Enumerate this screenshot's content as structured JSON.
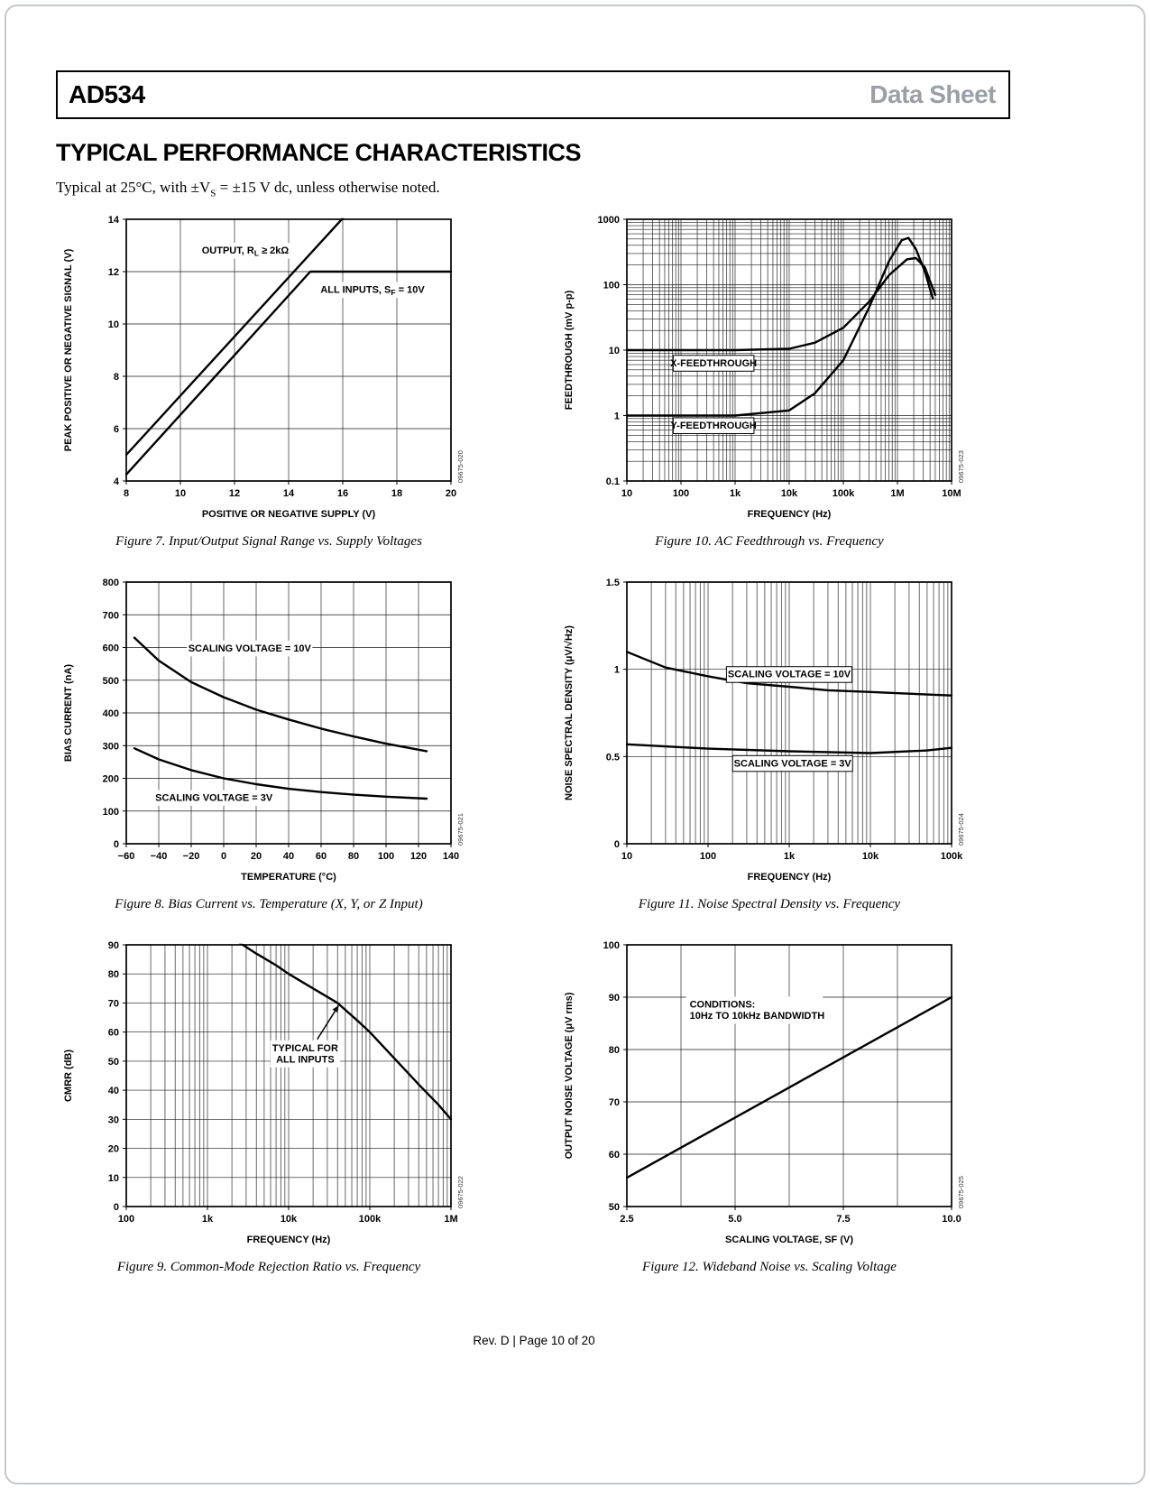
{
  "header": {
    "part_number": "AD534",
    "doc_type": "Data Sheet"
  },
  "section_title": "TYPICAL PERFORMANCE CHARACTERISTICS",
  "conditions_note": {
    "pre": "Typical at 25°C, with ±V",
    "sub": "S",
    "post": " = ±15 V dc, unless otherwise noted."
  },
  "footer": {
    "text": "Rev. D | Page 10 of 20"
  },
  "chart_data": [
    {
      "id": "fig7",
      "type": "line",
      "caption": "Figure 7. Input/Output Signal Range vs. Supply Voltages",
      "code": "09675-020",
      "xlabel": "POSITIVE OR NEGATIVE SUPPLY (V)",
      "ylabel": "PEAK POSITIVE OR NEGATIVE SIGNAL (V)",
      "xscale": "linear",
      "yscale": "linear",
      "xlim": [
        8,
        20
      ],
      "ylim": [
        4,
        14
      ],
      "xticks": [
        {
          "v": 8,
          "l": "8"
        },
        {
          "v": 10,
          "l": "10"
        },
        {
          "v": 12,
          "l": "12"
        },
        {
          "v": 14,
          "l": "14"
        },
        {
          "v": 16,
          "l": "16"
        },
        {
          "v": 18,
          "l": "18"
        },
        {
          "v": 20,
          "l": "20"
        }
      ],
      "yticks": [
        {
          "v": 4,
          "l": "4"
        },
        {
          "v": 6,
          "l": "6"
        },
        {
          "v": 8,
          "l": "8"
        },
        {
          "v": 10,
          "l": "10"
        },
        {
          "v": 12,
          "l": "12"
        },
        {
          "v": 14,
          "l": "14"
        }
      ],
      "xgrid": [
        10,
        12,
        14,
        16,
        18
      ],
      "ygrid": [
        6,
        8,
        10,
        12
      ],
      "series": [
        {
          "name": "OUTPUT, RL >= 2kOhm",
          "points": [
            [
              8,
              5
            ],
            [
              16.1,
              14.15
            ]
          ]
        },
        {
          "name": "ALL INPUTS, SF = 10V",
          "points": [
            [
              8,
              4.25
            ],
            [
              14.8,
              12
            ],
            [
              20,
              12
            ]
          ]
        }
      ],
      "annotations": [
        {
          "x": 12.4,
          "y": 12.8,
          "box": true,
          "lines": [
            [
              {
                "t": "OUTPUT, R"
              },
              {
                "t": "L",
                "sub": true
              },
              {
                "t": " ≥ 2kΩ"
              }
            ]
          ]
        },
        {
          "x": 17.1,
          "y": 11.3,
          "box": true,
          "lines": [
            [
              {
                "t": "ALL INPUTS, S"
              },
              {
                "t": "F",
                "sub": true
              },
              {
                "t": " = 10V"
              }
            ]
          ]
        }
      ]
    },
    {
      "id": "fig10",
      "type": "line",
      "caption": "Figure 10. AC Feedthrough vs. Frequency",
      "code": "09675-023",
      "xlabel": "FREQUENCY (Hz)",
      "ylabel": "FEEDTHROUGH (mV p-p)",
      "xscale": "log",
      "yscale": "log",
      "xlim": [
        10,
        10000000
      ],
      "ylim": [
        0.1,
        1000
      ],
      "xticks": [
        {
          "v": 10,
          "l": "10"
        },
        {
          "v": 100,
          "l": "100"
        },
        {
          "v": 1000,
          "l": "1k"
        },
        {
          "v": 10000,
          "l": "10k"
        },
        {
          "v": 100000,
          "l": "100k"
        },
        {
          "v": 1000000,
          "l": "1M"
        },
        {
          "v": 10000000,
          "l": "10M"
        }
      ],
      "yticks": [
        {
          "v": 0.1,
          "l": "0.1"
        },
        {
          "v": 1,
          "l": "1"
        },
        {
          "v": 10,
          "l": "10"
        },
        {
          "v": 100,
          "l": "100"
        },
        {
          "v": 1000,
          "l": "1000"
        }
      ],
      "series": [
        {
          "name": "X-FEEDTHROUGH",
          "points": [
            [
              10,
              10
            ],
            [
              100,
              10
            ],
            [
              1000,
              10
            ],
            [
              10000,
              10.5
            ],
            [
              30000,
              13
            ],
            [
              100000,
              22
            ],
            [
              300000,
              55
            ],
            [
              700000,
              140
            ],
            [
              1500000,
              245
            ],
            [
              2200000,
              255
            ],
            [
              3200000,
              185
            ],
            [
              5000000,
              70
            ]
          ]
        },
        {
          "name": "Y-FEEDTHROUGH",
          "points": [
            [
              10,
              1
            ],
            [
              100,
              1
            ],
            [
              1000,
              1
            ],
            [
              10000,
              1.2
            ],
            [
              30000,
              2.2
            ],
            [
              100000,
              7
            ],
            [
              300000,
              45
            ],
            [
              700000,
              230
            ],
            [
              1200000,
              480
            ],
            [
              1600000,
              520
            ],
            [
              2200000,
              350
            ],
            [
              3200000,
              160
            ],
            [
              4500000,
              62
            ]
          ]
        }
      ],
      "annotations": [
        {
          "x": 400,
          "y": 6.3,
          "box": true,
          "border": true,
          "lines": [
            "X-FEEDTHROUGH"
          ]
        },
        {
          "x": 400,
          "y": 0.7,
          "box": true,
          "border": true,
          "lines": [
            "Y-FEEDTHROUGH"
          ]
        }
      ]
    },
    {
      "id": "fig8",
      "type": "line",
      "caption": "Figure 8. Bias Current vs. Temperature (X, Y, or Z Input)",
      "code": "09675-021",
      "xlabel": "TEMPERATURE (°C)",
      "ylabel": "BIAS CURRENT (nA)",
      "xscale": "linear",
      "yscale": "linear",
      "xlim": [
        -60,
        140
      ],
      "ylim": [
        0,
        800
      ],
      "xticks": [
        {
          "v": -60,
          "l": "−60"
        },
        {
          "v": -40,
          "l": "−40"
        },
        {
          "v": -20,
          "l": "−20"
        },
        {
          "v": 0,
          "l": "0"
        },
        {
          "v": 20,
          "l": "20"
        },
        {
          "v": 40,
          "l": "40"
        },
        {
          "v": 60,
          "l": "60"
        },
        {
          "v": 80,
          "l": "80"
        },
        {
          "v": 100,
          "l": "100"
        },
        {
          "v": 120,
          "l": "120"
        },
        {
          "v": 140,
          "l": "140"
        }
      ],
      "yticks": [
        {
          "v": 0,
          "l": "0"
        },
        {
          "v": 100,
          "l": "100"
        },
        {
          "v": 200,
          "l": "200"
        },
        {
          "v": 300,
          "l": "300"
        },
        {
          "v": 400,
          "l": "400"
        },
        {
          "v": 500,
          "l": "500"
        },
        {
          "v": 600,
          "l": "600"
        },
        {
          "v": 700,
          "l": "700"
        },
        {
          "v": 800,
          "l": "800"
        }
      ],
      "xgrid": [
        -40,
        -20,
        0,
        20,
        40,
        60,
        80,
        100,
        120
      ],
      "ygrid": [
        100,
        200,
        300,
        400,
        500,
        600,
        700
      ],
      "series": [
        {
          "name": "SCALING VOLTAGE = 10V",
          "points": [
            [
              -55,
              630
            ],
            [
              -40,
              560
            ],
            [
              -20,
              494
            ],
            [
              0,
              448
            ],
            [
              20,
              410
            ],
            [
              40,
              380
            ],
            [
              60,
              352
            ],
            [
              80,
              328
            ],
            [
              100,
              306
            ],
            [
              125,
              283
            ]
          ]
        },
        {
          "name": "SCALING VOLTAGE = 3V",
          "points": [
            [
              -55,
              292
            ],
            [
              -40,
              258
            ],
            [
              -20,
              225
            ],
            [
              0,
              200
            ],
            [
              20,
              182
            ],
            [
              40,
              168
            ],
            [
              60,
              158
            ],
            [
              80,
              150
            ],
            [
              100,
              144
            ],
            [
              125,
              138
            ]
          ]
        }
      ],
      "annotations": [
        {
          "x": 16,
          "y": 597,
          "box": true,
          "lines": [
            "SCALING VOLTAGE = 10V"
          ]
        },
        {
          "x": -6,
          "y": 140,
          "box": true,
          "lines": [
            "SCALING VOLTAGE = 3V"
          ]
        }
      ]
    },
    {
      "id": "fig11",
      "type": "line",
      "caption": "Figure 11. Noise Spectral Density vs. Frequency",
      "code": "09675-024",
      "xlabel": "FREQUENCY (Hz)",
      "ylabel": "NOISE SPECTRAL DENSITY (μV/√Hz)",
      "xscale": "log",
      "yscale": "linear",
      "xlim": [
        10,
        100000
      ],
      "ylim": [
        0,
        1.5
      ],
      "xticks": [
        {
          "v": 10,
          "l": "10"
        },
        {
          "v": 100,
          "l": "100"
        },
        {
          "v": 1000,
          "l": "1k"
        },
        {
          "v": 10000,
          "l": "10k"
        },
        {
          "v": 100000,
          "l": "100k"
        }
      ],
      "yticks": [
        {
          "v": 0,
          "l": "0"
        },
        {
          "v": 0.5,
          "l": "0.5"
        },
        {
          "v": 1,
          "l": "1"
        },
        {
          "v": 1.5,
          "l": "1.5"
        }
      ],
      "ygrid": [
        0.5,
        1
      ],
      "series": [
        {
          "name": "SCALING VOLTAGE = 10V",
          "points": [
            [
              10,
              1.1
            ],
            [
              30,
              1.01
            ],
            [
              100,
              0.96
            ],
            [
              300,
              0.92
            ],
            [
              1000,
              0.9
            ],
            [
              3000,
              0.88
            ],
            [
              10000,
              0.87
            ],
            [
              30000,
              0.86
            ],
            [
              100000,
              0.85
            ]
          ]
        },
        {
          "name": "SCALING VOLTAGE = 3V",
          "points": [
            [
              10,
              0.57
            ],
            [
              100,
              0.545
            ],
            [
              1000,
              0.53
            ],
            [
              10000,
              0.52
            ],
            [
              50000,
              0.535
            ],
            [
              100000,
              0.55
            ]
          ]
        }
      ],
      "annotations": [
        {
          "x": 1000,
          "y": 0.97,
          "box": true,
          "border": true,
          "lines": [
            "SCALING VOLTAGE = 10V"
          ]
        },
        {
          "x": 1100,
          "y": 0.46,
          "box": true,
          "border": true,
          "lines": [
            "SCALING VOLTAGE = 3V"
          ]
        }
      ]
    },
    {
      "id": "fig9",
      "type": "line",
      "caption": "Figure 9. Common-Mode Rejection Ratio vs. Frequency",
      "code": "09675-022",
      "xlabel": "FREQUENCY (Hz)",
      "ylabel": "CMRR (dB)",
      "xscale": "log",
      "yscale": "linear",
      "xlim": [
        100,
        1000000
      ],
      "ylim": [
        0,
        90
      ],
      "xticks": [
        {
          "v": 100,
          "l": "100"
        },
        {
          "v": 1000,
          "l": "1k"
        },
        {
          "v": 10000,
          "l": "10k"
        },
        {
          "v": 100000,
          "l": "100k"
        },
        {
          "v": 1000000,
          "l": "1M"
        }
      ],
      "yticks": [
        {
          "v": 0,
          "l": "0"
        },
        {
          "v": 10,
          "l": "10"
        },
        {
          "v": 20,
          "l": "20"
        },
        {
          "v": 30,
          "l": "30"
        },
        {
          "v": 40,
          "l": "40"
        },
        {
          "v": 50,
          "l": "50"
        },
        {
          "v": 60,
          "l": "60"
        },
        {
          "v": 70,
          "l": "70"
        },
        {
          "v": 80,
          "l": "80"
        },
        {
          "v": 90,
          "l": "90"
        }
      ],
      "ygrid": [
        10,
        20,
        30,
        40,
        50,
        60,
        70,
        80
      ],
      "series": [
        {
          "name": "CMRR",
          "points": [
            [
              2400,
              91
            ],
            [
              4000,
              87
            ],
            [
              7000,
              83
            ],
            [
              10000,
              80
            ],
            [
              20000,
              75
            ],
            [
              40000,
              70
            ],
            [
              70000,
              64
            ],
            [
              100000,
              60
            ],
            [
              200000,
              51
            ],
            [
              400000,
              42
            ],
            [
              700000,
              35
            ],
            [
              1000000,
              30
            ]
          ]
        }
      ],
      "annotations": [
        {
          "x": 16000,
          "y": 52.5,
          "box": true,
          "lines": [
            "TYPICAL FOR",
            "ALL INPUTS"
          ]
        }
      ],
      "arrows": [
        {
          "from": [
            22500,
            57.5
          ],
          "to": [
            41000,
            69
          ]
        }
      ]
    },
    {
      "id": "fig12",
      "type": "line",
      "caption": "Figure 12. Wideband Noise vs. Scaling Voltage",
      "code": "09675-025",
      "xlabel": "SCALING VOLTAGE, SF (V)",
      "ylabel": "OUTPUT NOISE VOLTAGE (μV rms)",
      "xscale": "linear",
      "yscale": "linear",
      "xlim": [
        2.5,
        10
      ],
      "ylim": [
        50,
        100
      ],
      "xticks": [
        {
          "v": 2.5,
          "l": "2.5"
        },
        {
          "v": 5,
          "l": "5.0"
        },
        {
          "v": 7.5,
          "l": "7.5"
        },
        {
          "v": 10,
          "l": "10.0"
        }
      ],
      "yticks": [
        {
          "v": 50,
          "l": "50"
        },
        {
          "v": 60,
          "l": "60"
        },
        {
          "v": 70,
          "l": "70"
        },
        {
          "v": 80,
          "l": "80"
        },
        {
          "v": 90,
          "l": "90"
        },
        {
          "v": 100,
          "l": "100"
        }
      ],
      "xgrid": [
        3.75,
        5,
        6.25,
        7.5,
        8.75
      ],
      "ygrid": [
        60,
        70,
        80,
        90
      ],
      "series": [
        {
          "name": "OUTPUT NOISE",
          "points": [
            [
              2.5,
              55.5
            ],
            [
              10,
              90
            ]
          ]
        }
      ],
      "annotations": [
        {
          "x": 3.95,
          "y": 87.5,
          "anchor": "start",
          "box": true,
          "lines": [
            "CONDITIONS:",
            "10Hz TO 10kHz BANDWIDTH"
          ]
        }
      ]
    }
  ]
}
